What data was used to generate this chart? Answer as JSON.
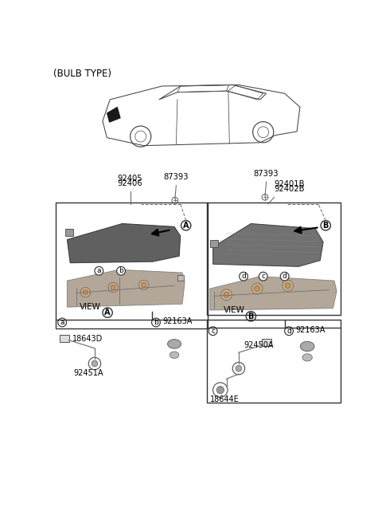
{
  "title": "(BULB TYPE)",
  "background_color": "#ffffff",
  "text_color": "#000000",
  "box_line_color": "#333333",
  "line_color": "#555555",
  "part_numbers": {
    "left_lamp": [
      "92405",
      "92406"
    ],
    "center_screw": "87393",
    "right_screw": "87393",
    "right_lamp": [
      "92401B",
      "92402B"
    ],
    "view_a_bottom_b_label": "92163A",
    "view_a_wire": "18643D",
    "view_a_socket": "92451A",
    "view_b_bottom_d_label": "92163A",
    "view_b_wire": "92450A",
    "view_b_bulb": "18644E"
  }
}
